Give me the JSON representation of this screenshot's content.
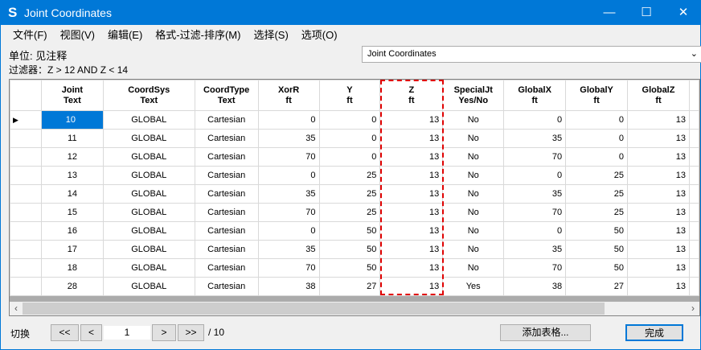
{
  "window": {
    "title": "Joint Coordinates",
    "logo": "S",
    "minimize": "—",
    "maximize": "☐",
    "close": "✕"
  },
  "menu": [
    "文件(F)",
    "视图(V)",
    "编辑(E)",
    "格式-过滤-排序(M)",
    "选择(S)",
    "选项(O)"
  ],
  "units_label": "单位: 见注释",
  "filter_label": "过滤器：Z > 12 AND Z < 14",
  "table_selector": {
    "value": "Joint Coordinates"
  },
  "columns": [
    [
      "Joint",
      "Text"
    ],
    [
      "CoordSys",
      "Text"
    ],
    [
      "CoordType",
      "Text"
    ],
    [
      "XorR",
      "ft"
    ],
    [
      "Y",
      "ft"
    ],
    [
      "Z",
      "ft"
    ],
    [
      "SpecialJt",
      "Yes/No"
    ],
    [
      "GlobalX",
      "ft"
    ],
    [
      "GlobalY",
      "ft"
    ],
    [
      "GlobalZ",
      "ft"
    ]
  ],
  "rows": [
    [
      "10",
      "GLOBAL",
      "Cartesian",
      "0",
      "0",
      "13",
      "No",
      "0",
      "0",
      "13"
    ],
    [
      "11",
      "GLOBAL",
      "Cartesian",
      "35",
      "0",
      "13",
      "No",
      "35",
      "0",
      "13"
    ],
    [
      "12",
      "GLOBAL",
      "Cartesian",
      "70",
      "0",
      "13",
      "No",
      "70",
      "0",
      "13"
    ],
    [
      "13",
      "GLOBAL",
      "Cartesian",
      "0",
      "25",
      "13",
      "No",
      "0",
      "25",
      "13"
    ],
    [
      "14",
      "GLOBAL",
      "Cartesian",
      "35",
      "25",
      "13",
      "No",
      "35",
      "25",
      "13"
    ],
    [
      "15",
      "GLOBAL",
      "Cartesian",
      "70",
      "25",
      "13",
      "No",
      "70",
      "25",
      "13"
    ],
    [
      "16",
      "GLOBAL",
      "Cartesian",
      "0",
      "50",
      "13",
      "No",
      "0",
      "50",
      "13"
    ],
    [
      "17",
      "GLOBAL",
      "Cartesian",
      "35",
      "50",
      "13",
      "No",
      "35",
      "50",
      "13"
    ],
    [
      "18",
      "GLOBAL",
      "Cartesian",
      "70",
      "50",
      "13",
      "No",
      "70",
      "50",
      "13"
    ],
    [
      "28",
      "GLOBAL",
      "Cartesian",
      "38",
      "27",
      "13",
      "Yes",
      "38",
      "27",
      "13"
    ]
  ],
  "selected_row_index": 0,
  "highlighted_column": "Z",
  "footer": {
    "switch_label": "切换",
    "first": "<<",
    "prev": "<",
    "page": "1",
    "next": ">",
    "last": ">>",
    "total": "/ 10",
    "add_table": "添加表格...",
    "done": "完成"
  },
  "colors": {
    "accent": "#0078d7",
    "highlight_border": "#e00000"
  }
}
